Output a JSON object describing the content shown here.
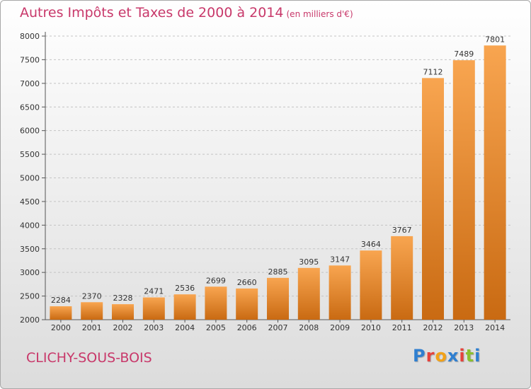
{
  "header": {
    "title": "Autres Impôts et Taxes de 2000 à 2014",
    "subtitle": "(en milliers d'€)"
  },
  "footer": {
    "town": "CLICHY-SOUS-BOIS"
  },
  "logo": {
    "letters": [
      "P",
      "r",
      "o",
      "x",
      "i",
      "t",
      "i"
    ],
    "colors": [
      "#2f7fd0",
      "#e5423b",
      "#f2a218",
      "#2f7fd0",
      "#e5423b",
      "#8bbf2e",
      "#2f7fd0"
    ]
  },
  "chart_data": {
    "type": "bar",
    "title": "Autres Impôts et Taxes de 2000 à 2014",
    "subtitle": "(en milliers d'€)",
    "categories": [
      "2000",
      "2001",
      "2002",
      "2003",
      "2004",
      "2005",
      "2006",
      "2007",
      "2008",
      "2009",
      "2010",
      "2011",
      "2012",
      "2013",
      "2014"
    ],
    "values": [
      2284,
      2370,
      2328,
      2471,
      2536,
      2699,
      2660,
      2885,
      3095,
      3147,
      3464,
      3767,
      7112,
      7489,
      7801
    ],
    "ylim": [
      2000,
      8000
    ],
    "yticks": [
      2000,
      2500,
      3000,
      3500,
      4000,
      4500,
      5000,
      5500,
      6000,
      6500,
      7000,
      7500,
      8000
    ],
    "grid": true,
    "bar_color_light": "#f8a550",
    "bar_color_dark": "#c96a12"
  }
}
